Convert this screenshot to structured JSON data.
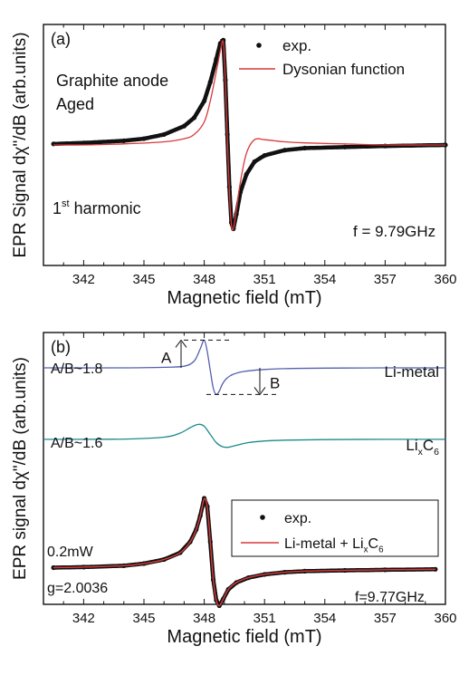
{
  "chart_data": [
    {
      "type": "line",
      "panel_label": "(a)",
      "xlabel": "Magnetic field (mT)",
      "ylabel": "EPR Signal dχ\"/dB (arb.units)",
      "xlim": [
        340,
        360
      ],
      "xticks": [
        342,
        345,
        348,
        351,
        354,
        357,
        360
      ],
      "ylim": [
        -1.15,
        1.15
      ],
      "y_ticks_labeled": false,
      "grid": false,
      "legend": "top-right",
      "annotations": [
        "Graphite anode",
        "Aged",
        "1",
        "st",
        " harmonic",
        "f = 9.79GHz"
      ],
      "series": [
        {
          "name": "exp.",
          "style": "scatter",
          "color": "#111111",
          "x": [
            340.5,
            342,
            344,
            345,
            346,
            347,
            347.5,
            348,
            348.3,
            348.6,
            348.8,
            348.95,
            349.05,
            349.15,
            349.25,
            349.35,
            349.45,
            349.6,
            349.8,
            350.1,
            350.5,
            351,
            352,
            353,
            355,
            357,
            360
          ],
          "y": [
            0.01,
            0.02,
            0.04,
            0.06,
            0.1,
            0.18,
            0.26,
            0.42,
            0.6,
            0.82,
            0.97,
            1.0,
            0.62,
            0.1,
            -0.4,
            -0.74,
            -0.8,
            -0.66,
            -0.45,
            -0.28,
            -0.16,
            -0.1,
            -0.05,
            -0.03,
            -0.02,
            -0.01,
            0.0
          ]
        },
        {
          "name": "Dysonian function",
          "style": "line",
          "color": "#d93a3a",
          "x": [
            340.5,
            342,
            344,
            346,
            347,
            347.5,
            348,
            348.3,
            348.6,
            348.8,
            348.95,
            349.05,
            349.15,
            349.25,
            349.35,
            349.45,
            349.6,
            349.8,
            350.1,
            350.5,
            351,
            351.5,
            352,
            353,
            355,
            357,
            360
          ],
          "y": [
            0.0,
            0.0,
            0.01,
            0.03,
            0.06,
            0.1,
            0.22,
            0.42,
            0.7,
            0.9,
            0.98,
            0.6,
            0.05,
            -0.45,
            -0.76,
            -0.8,
            -0.62,
            -0.35,
            -0.08,
            0.05,
            0.05,
            0.04,
            0.03,
            0.02,
            0.01,
            0.0,
            0.0
          ]
        }
      ]
    },
    {
      "type": "line",
      "panel_label": "(b)",
      "xlabel": "Magnetic field (mT)",
      "ylabel": "EPR signal dχ\"/dB (arb.units)",
      "xlim": [
        340,
        360
      ],
      "xticks": [
        342,
        345,
        348,
        351,
        354,
        357,
        360
      ],
      "ylim": [
        0,
        10
      ],
      "y_ticks_labeled": false,
      "grid": false,
      "legend": "bottom-right",
      "annotations": [
        "A/B~1.8",
        "A/B~1.6",
        "A",
        "B",
        "0.2mW",
        "g=2.0036",
        "f=9.77GHz"
      ],
      "series": [
        {
          "name": "Li-metal",
          "label_parts": [
            "Li-metal"
          ],
          "style": "line",
          "color": "#5560b0",
          "x": [
            340,
            344,
            346,
            347,
            347.5,
            347.8,
            348,
            348.15,
            348.3,
            348.45,
            348.6,
            348.75,
            348.9,
            349.1,
            349.4,
            350,
            351,
            352,
            354,
            357,
            360
          ],
          "y": [
            8.7,
            8.7,
            8.72,
            8.76,
            8.95,
            9.4,
            9.72,
            9.3,
            8.6,
            7.95,
            7.72,
            7.85,
            8.1,
            8.3,
            8.45,
            8.57,
            8.64,
            8.67,
            8.69,
            8.7,
            8.7
          ],
          "label_color": "#5560b0"
        },
        {
          "name": "LixC6",
          "label_parts": [
            "Li",
            "x",
            "C",
            "6"
          ],
          "style": "line",
          "color": "#1b8a8a",
          "x": [
            340,
            344,
            346,
            346.8,
            347.3,
            347.7,
            348.0,
            348.3,
            348.6,
            348.9,
            349.2,
            349.6,
            350.2,
            351,
            352,
            354,
            357,
            360
          ],
          "y": [
            6.07,
            6.08,
            6.15,
            6.3,
            6.5,
            6.62,
            6.55,
            6.25,
            5.95,
            5.8,
            5.78,
            5.85,
            5.95,
            6.01,
            6.04,
            6.06,
            6.07,
            6.07
          ]
        },
        {
          "name": "exp.",
          "style": "scatter",
          "color": "#111111",
          "x": [
            340.5,
            342,
            344,
            345,
            346,
            346.8,
            347.3,
            347.6,
            347.8,
            348.0,
            348.15,
            348.3,
            348.45,
            348.6,
            348.75,
            348.95,
            349.2,
            349.6,
            350.2,
            351,
            352,
            353,
            355,
            357,
            359.5
          ],
          "y": [
            1.35,
            1.37,
            1.42,
            1.5,
            1.65,
            1.9,
            2.3,
            2.75,
            3.25,
            3.9,
            3.6,
            2.3,
            0.9,
            0.15,
            -0.05,
            0.2,
            0.55,
            0.8,
            0.98,
            1.1,
            1.18,
            1.22,
            1.25,
            1.27,
            1.29
          ]
        },
        {
          "name": "Li-metal + LixC6",
          "label_parts": [
            "Li-metal + Li",
            "x",
            "C",
            "6"
          ],
          "style": "line",
          "color": "#d93a3a",
          "x": [
            340.5,
            342,
            344,
            345,
            346,
            346.8,
            347.3,
            347.6,
            347.8,
            348.0,
            348.15,
            348.3,
            348.45,
            348.6,
            348.75,
            348.95,
            349.2,
            349.6,
            350.2,
            351,
            352,
            353,
            355,
            357,
            359.5
          ],
          "y": [
            1.35,
            1.37,
            1.42,
            1.5,
            1.65,
            1.9,
            2.3,
            2.75,
            3.25,
            3.88,
            3.58,
            2.3,
            0.9,
            0.15,
            -0.05,
            0.2,
            0.55,
            0.8,
            0.98,
            1.1,
            1.18,
            1.22,
            1.25,
            1.27,
            1.29
          ]
        }
      ]
    }
  ]
}
